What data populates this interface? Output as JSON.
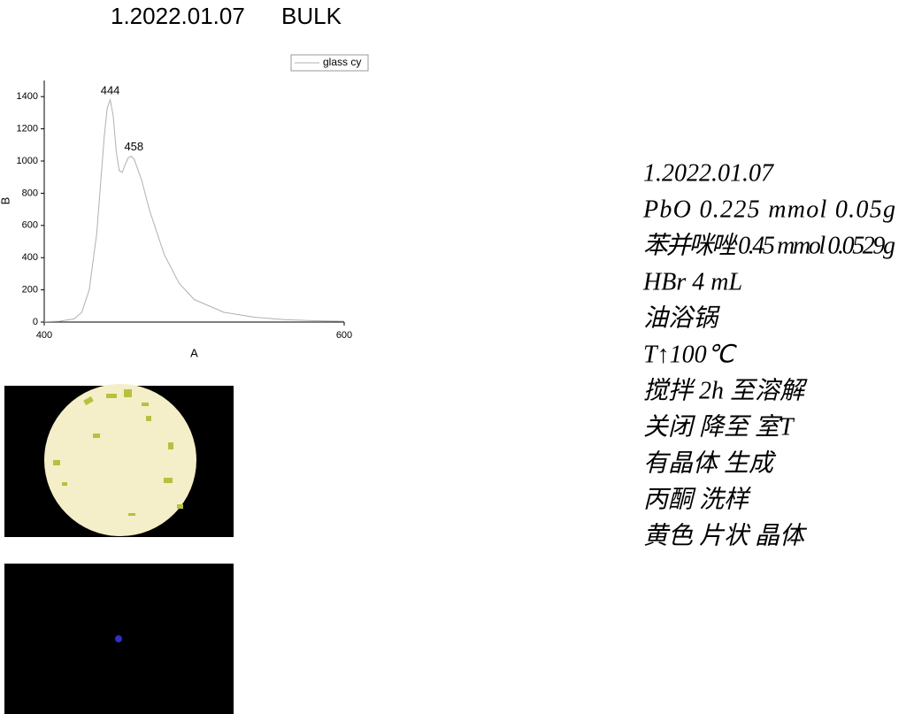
{
  "header": {
    "date": "1.2022.01.07",
    "label": "BULK"
  },
  "chart_data": {
    "type": "line",
    "xlabel": "A",
    "ylabel": "B",
    "xlim": [
      400,
      600
    ],
    "ylim": [
      0,
      1500
    ],
    "xticks": [
      400,
      600
    ],
    "yticks": [
      0,
      200,
      400,
      600,
      800,
      1000,
      1200,
      1400
    ],
    "peak_labels": [
      444,
      458
    ],
    "series": [
      {
        "name": "glass cy",
        "color": "#b0b0b0",
        "x": [
          400,
          410,
          420,
          425,
          430,
          435,
          440,
          442,
          444,
          446,
          448,
          450,
          452,
          454,
          456,
          458,
          460,
          465,
          470,
          480,
          490,
          500,
          520,
          540,
          560,
          580,
          600
        ],
        "values": [
          2,
          5,
          20,
          60,
          200,
          550,
          1150,
          1330,
          1380,
          1280,
          1060,
          940,
          930,
          980,
          1020,
          1030,
          1010,
          880,
          700,
          420,
          240,
          140,
          60,
          30,
          15,
          8,
          5
        ]
      }
    ]
  },
  "notes": [
    "1.2022.01.07",
    "PbO 0.225 mmol 0.05g",
    "苯并咪唑 0.45 mmol 0.0529g",
    "HBr 4 mL",
    "油浴锅",
    "T↑100℃",
    "搅拌 2h 至溶解",
    "关闭 降至 室T",
    "有晶体 生成",
    "丙酮 洗样",
    "黄色 片状 晶体"
  ]
}
